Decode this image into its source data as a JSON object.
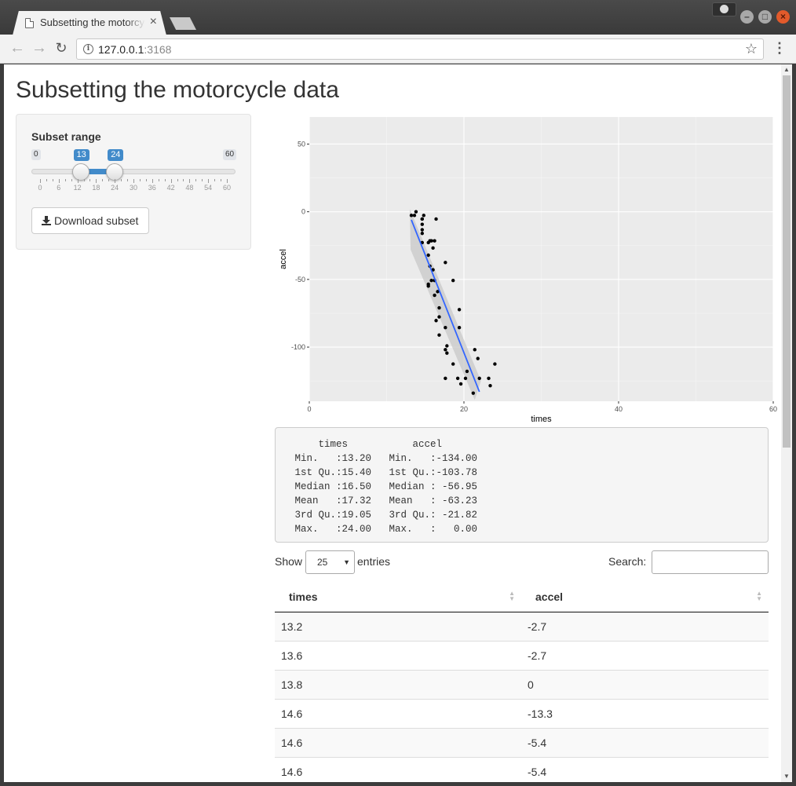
{
  "browser": {
    "tab_title": "Subsetting the motorcycle data",
    "tab_close": "×",
    "url_host": "127.0.0.1",
    "url_port": ":3168",
    "star": "☆",
    "menu": "⋮",
    "back": "←",
    "forward": "→",
    "reload": "↻",
    "info": "i"
  },
  "page": {
    "title": "Subsetting the motorcycle data"
  },
  "sidebar": {
    "slider_label": "Subset range",
    "slider_min": "0",
    "slider_max": "60",
    "slider_from": "13",
    "slider_to": "24",
    "slider_range": {
      "min": 0,
      "max": 60,
      "from": 13,
      "to": 24
    },
    "tick_labels": [
      "0",
      "6",
      "12",
      "18",
      "24",
      "30",
      "36",
      "42",
      "48",
      "54",
      "60"
    ],
    "download_label": "Download subset"
  },
  "chart_data": {
    "type": "scatter",
    "xlabel": "times",
    "ylabel": "accel",
    "xlim": [
      0,
      60
    ],
    "ylim": [
      -140,
      70
    ],
    "x_ticks": [
      0,
      20,
      40,
      60
    ],
    "y_ticks": [
      50,
      0,
      -50,
      -100
    ],
    "grid": true,
    "points": [
      [
        13.2,
        -2.7
      ],
      [
        13.6,
        -2.7
      ],
      [
        13.8,
        0
      ],
      [
        14.6,
        -13.3
      ],
      [
        14.6,
        -5.4
      ],
      [
        14.6,
        -5.4
      ],
      [
        14.6,
        -9.3
      ],
      [
        14.6,
        -16.0
      ],
      [
        14.6,
        -22.8
      ],
      [
        14.8,
        -2.7
      ],
      [
        15.4,
        -22.8
      ],
      [
        15.4,
        -32.1
      ],
      [
        15.4,
        -53.5
      ],
      [
        15.4,
        -54.9
      ],
      [
        15.6,
        -40.2
      ],
      [
        15.6,
        -21.5
      ],
      [
        15.8,
        -21.5
      ],
      [
        15.8,
        -50.8
      ],
      [
        16.0,
        -42.9
      ],
      [
        16.0,
        -26.8
      ],
      [
        16.2,
        -21.5
      ],
      [
        16.2,
        -50.8
      ],
      [
        16.2,
        -61.7
      ],
      [
        16.4,
        -5.4
      ],
      [
        16.4,
        -80.4
      ],
      [
        16.6,
        -59.0
      ],
      [
        16.8,
        -71.0
      ],
      [
        16.8,
        -91.1
      ],
      [
        16.8,
        -77.7
      ],
      [
        17.6,
        -37.5
      ],
      [
        17.6,
        -85.6
      ],
      [
        17.6,
        -123.1
      ],
      [
        17.6,
        -101.9
      ],
      [
        17.8,
        -99.1
      ],
      [
        17.8,
        -104.4
      ],
      [
        18.6,
        -112.5
      ],
      [
        18.6,
        -50.8
      ],
      [
        19.2,
        -123.1
      ],
      [
        19.4,
        -85.6
      ],
      [
        19.4,
        -72.3
      ],
      [
        19.6,
        -127.2
      ],
      [
        20.2,
        -123.1
      ],
      [
        20.4,
        -117.9
      ],
      [
        21.2,
        -134.0
      ],
      [
        21.4,
        -101.9
      ],
      [
        21.8,
        -108.4
      ],
      [
        22.0,
        -123.1
      ],
      [
        23.2,
        -123.1
      ],
      [
        23.4,
        -128.5
      ],
      [
        24.0,
        -112.5
      ]
    ],
    "smooth_line": {
      "x": [
        13.2,
        22.0
      ],
      "y": [
        -6.0,
        -133.0
      ]
    }
  },
  "summary": {
    "header": "     times           accel",
    "rows": [
      " Min.   :13.20   Min.   :-134.00",
      " 1st Qu.:15.40   1st Qu.:-103.78",
      " Median :16.50   Median : -56.95",
      " Mean   :17.32   Mean   : -63.23",
      " 3rd Qu.:19.05   3rd Qu.: -21.82",
      " Max.   :24.00   Max.   :   0.00"
    ]
  },
  "table": {
    "show_label": "Show",
    "length_value": "25",
    "entries_label": "entries",
    "search_label": "Search:",
    "search_value": "",
    "columns": [
      "times",
      "accel"
    ],
    "rows": [
      [
        "13.2",
        "-2.7"
      ],
      [
        "13.6",
        "-2.7"
      ],
      [
        "13.8",
        "0"
      ],
      [
        "14.6",
        "-13.3"
      ],
      [
        "14.6",
        "-5.4"
      ],
      [
        "14.6",
        "-5.4"
      ]
    ]
  }
}
